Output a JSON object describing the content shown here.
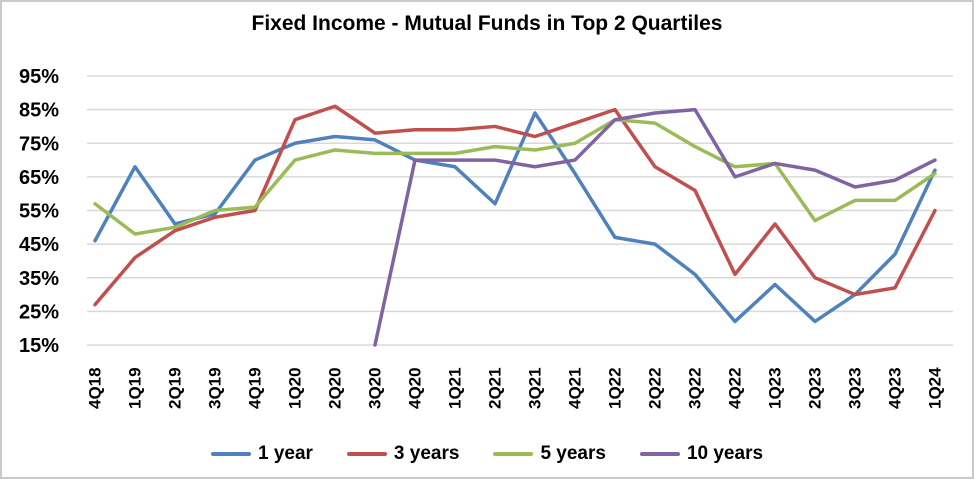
{
  "title": "Fixed Income - Mutual Funds in Top 2 Quartiles",
  "chart_data": {
    "type": "line",
    "title": "Fixed Income - Mutual Funds in Top 2 Quartiles",
    "categories": [
      "4Q18",
      "1Q19",
      "2Q19",
      "3Q19",
      "4Q19",
      "1Q20",
      "2Q20",
      "3Q20",
      "4Q20",
      "1Q21",
      "2Q21",
      "3Q21",
      "4Q21",
      "1Q22",
      "2Q22",
      "3Q22",
      "4Q22",
      "1Q23",
      "2Q23",
      "3Q23",
      "4Q23",
      "1Q24"
    ],
    "series": [
      {
        "name": "1 year",
        "color": "#4F81BD",
        "values": [
          46,
          68,
          51,
          54,
          70,
          75,
          77,
          76,
          70,
          68,
          57,
          84,
          66,
          47,
          45,
          36,
          22,
          33,
          22,
          30,
          42,
          67
        ]
      },
      {
        "name": "3 years",
        "color": "#C0504D",
        "values": [
          27,
          41,
          49,
          53,
          55,
          82,
          86,
          78,
          79,
          79,
          80,
          77,
          81,
          85,
          68,
          61,
          36,
          51,
          35,
          30,
          32,
          55
        ]
      },
      {
        "name": "5 years",
        "color": "#9BBB59",
        "values": [
          57,
          48,
          50,
          55,
          56,
          70,
          73,
          72,
          72,
          72,
          74,
          73,
          75,
          82,
          81,
          74,
          68,
          69,
          52,
          58,
          58,
          66
        ]
      },
      {
        "name": "10 years",
        "color": "#8064A2",
        "values": [
          null,
          null,
          null,
          null,
          null,
          null,
          null,
          15,
          70,
          70,
          70,
          68,
          70,
          82,
          84,
          85,
          65,
          69,
          67,
          62,
          64,
          70
        ]
      }
    ],
    "xlabel": "",
    "ylabel": "",
    "y_ticks": [
      "95%",
      "85%",
      "75%",
      "65%",
      "55%",
      "45%",
      "35%",
      "25%",
      "15%"
    ],
    "y_tick_values": [
      95,
      85,
      75,
      65,
      55,
      45,
      35,
      25,
      15
    ],
    "ylim": [
      15,
      95
    ],
    "grid": "horizontal-only",
    "gridline_color": "#D9D9D9",
    "text_color": "#000000",
    "legend_position": "bottom",
    "x_label_rotation": 90
  }
}
